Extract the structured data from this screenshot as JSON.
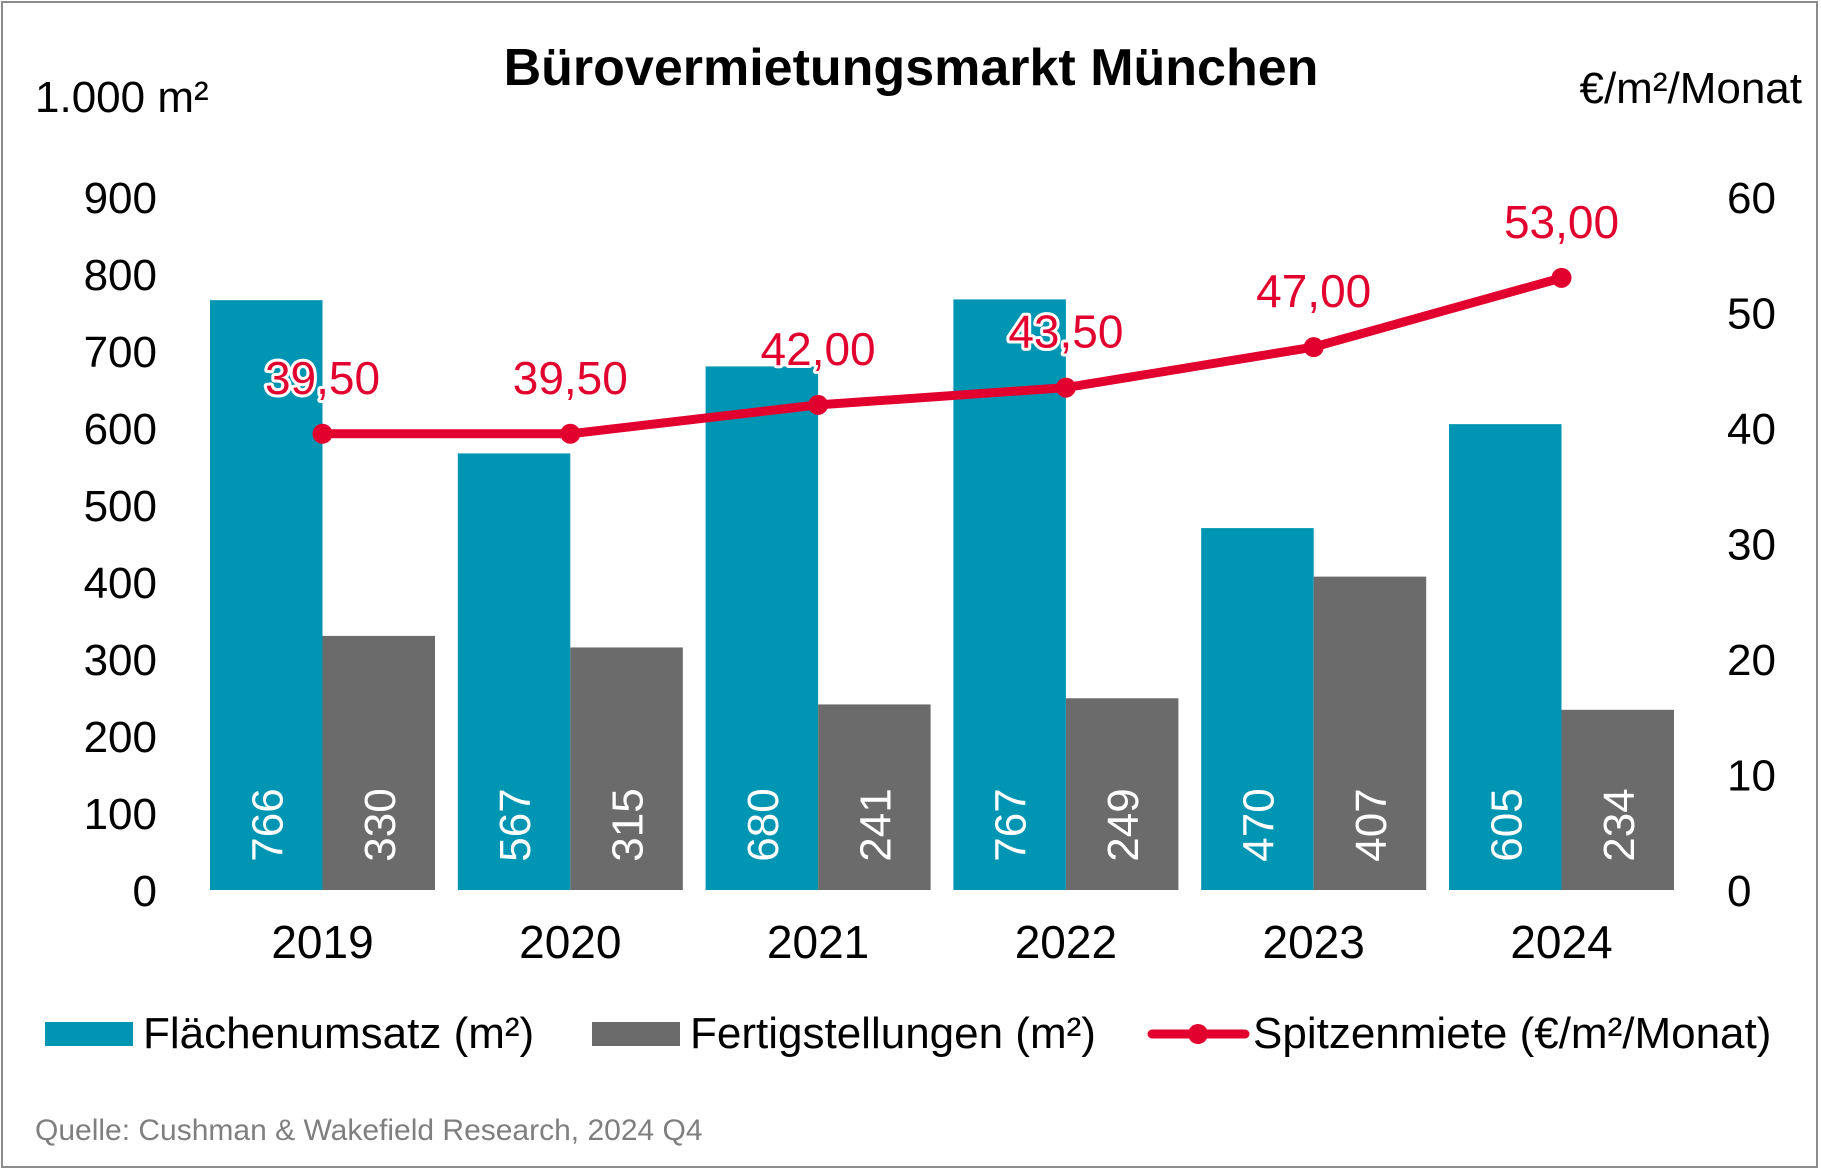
{
  "colors": {
    "flaechenumsatz": "#0095b3",
    "fertigstellungen": "#6b6b6b",
    "spitzenmiete": "#e2002e",
    "text": "#000000",
    "source": "#7f7f7f"
  },
  "chart_data": {
    "type": "bar",
    "title": "Bürovermietungsmarkt München",
    "ylabel": "1.000 m²",
    "y2label": "€/m²/Monat",
    "ylim": [
      0,
      900
    ],
    "y2lim": [
      0,
      60
    ],
    "yticks": [
      "0",
      "100",
      "200",
      "300",
      "400",
      "500",
      "600",
      "700",
      "800",
      "900"
    ],
    "y2ticks": [
      "0",
      "10",
      "20",
      "30",
      "40",
      "50",
      "60"
    ],
    "categories": [
      "2019",
      "2020",
      "2021",
      "2022",
      "2023",
      "2024"
    ],
    "series": [
      {
        "name": "Flächenumsatz (m²)",
        "type": "bar",
        "axis": "left",
        "values": [
          766,
          567,
          680,
          767,
          470,
          605
        ],
        "labels": [
          "766",
          "567",
          "680",
          "767",
          "470",
          "605"
        ]
      },
      {
        "name": "Fertigstellungen (m²)",
        "type": "bar",
        "axis": "left",
        "values": [
          330,
          315,
          241,
          249,
          407,
          234
        ],
        "labels": [
          "330",
          "315",
          "241",
          "249",
          "407",
          "234"
        ]
      },
      {
        "name": "Spitzenmiete (€/m²/Monat)",
        "type": "line",
        "axis": "right",
        "values": [
          39.5,
          39.5,
          42.0,
          43.5,
          47.0,
          53.0
        ],
        "labels": [
          "39,50",
          "39,50",
          "42,00",
          "43,50",
          "47,00",
          "53,00"
        ]
      }
    ],
    "legend": [
      "Flächenumsatz (m²)",
      "Fertigstellungen (m²)",
      "Spitzenmiete (€/m²/Monat)"
    ],
    "legend_position": "bottom",
    "grid": false
  },
  "source": "Quelle: Cushman & Wakefield Research, 2024 Q4"
}
